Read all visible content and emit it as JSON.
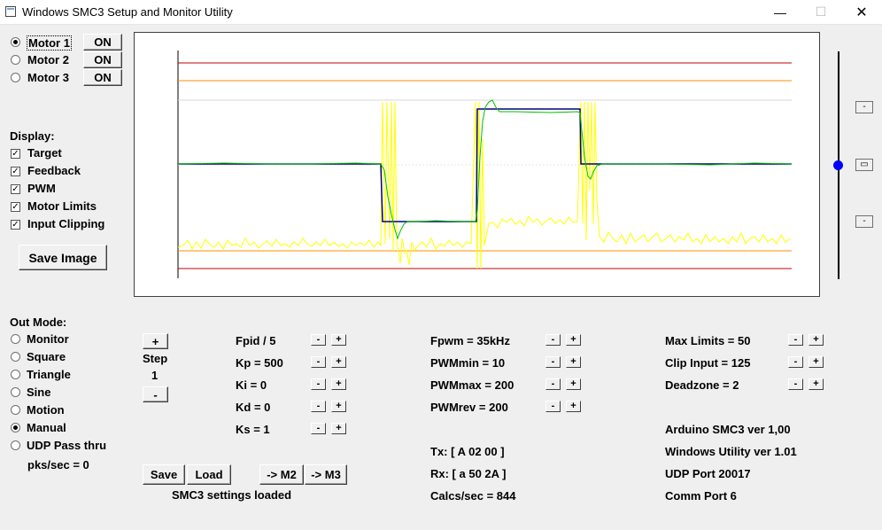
{
  "window": {
    "title": "Windows SMC3 Setup and Monitor Utility",
    "minimize_glyph": "—",
    "maximize_glyph": "☐",
    "close_glyph": "✕"
  },
  "motors": [
    {
      "label": "Motor 1",
      "selected": true,
      "button": "ON"
    },
    {
      "label": "Motor 2",
      "selected": false,
      "button": "ON"
    },
    {
      "label": "Motor 3",
      "selected": false,
      "button": "ON"
    }
  ],
  "display": {
    "heading": "Display:",
    "items": [
      {
        "label": "Target",
        "checked": true
      },
      {
        "label": "Feedback",
        "checked": true
      },
      {
        "label": "PWM",
        "checked": true
      },
      {
        "label": "Motor Limits",
        "checked": true
      },
      {
        "label": "Input Clipping",
        "checked": true
      }
    ],
    "save_image": "Save Image"
  },
  "out_mode": {
    "heading": "Out Mode:",
    "options": [
      {
        "label": "Monitor",
        "selected": false
      },
      {
        "label": "Square",
        "selected": false
      },
      {
        "label": "Triangle",
        "selected": false
      },
      {
        "label": "Sine",
        "selected": false
      },
      {
        "label": "Motion",
        "selected": false
      },
      {
        "label": "Manual",
        "selected": true
      },
      {
        "label": "UDP Pass thru",
        "selected": false
      }
    ],
    "pks_sec": "pks/sec = 0"
  },
  "step": {
    "plus": "+",
    "label": "Step",
    "value": "1",
    "minus": "-"
  },
  "pid_params": [
    {
      "label": "Fpid / 5"
    },
    {
      "label": "Kp = 500"
    },
    {
      "label": "Ki = 0"
    },
    {
      "label": "Kd = 0"
    },
    {
      "label": "Ks = 1"
    }
  ],
  "pwm_params": [
    {
      "label": "Fpwm = 35kHz"
    },
    {
      "label": "PWMmin = 10"
    },
    {
      "label": "PWMmax = 200"
    },
    {
      "label": "PWMrev = 200"
    }
  ],
  "limit_params": [
    {
      "label": "Max Limits = 50"
    },
    {
      "label": "Clip Input = 125"
    },
    {
      "label": "Deadzone = 2"
    }
  ],
  "small_buttons": {
    "minus": "-",
    "plus": "+"
  },
  "comm": {
    "tx": "Tx: [ A 02 00 ]",
    "rx": "Rx: [ a 50 2A ]",
    "calcs": "Calcs/sec = 844"
  },
  "info": {
    "arduino": "Arduino SMC3 ver 1,00",
    "utility": "Windows Utility ver 1.01",
    "udp": "UDP Port 20017",
    "comm_port": "Comm Port 6"
  },
  "actions": {
    "save": "Save",
    "load": "Load",
    "to_m2": "-> M2",
    "to_m3": "-> M3",
    "status": "SMC3 settings loaded"
  },
  "slider": {
    "up": "-",
    "mid": "▭",
    "down": "-",
    "level": 0.5
  },
  "plot": {
    "colors": {
      "target": "#000080",
      "feedback": "#00c000",
      "pwm": "#ffff00",
      "motor_limits": "#ff8c00",
      "input_clipping": "#c00000",
      "center_line": "#e0e0e0"
    },
    "series_note_levels": {
      "clip_upper": 125,
      "limit_upper": 95,
      "limit_lower": -95,
      "clip_lower": -125
    }
  }
}
